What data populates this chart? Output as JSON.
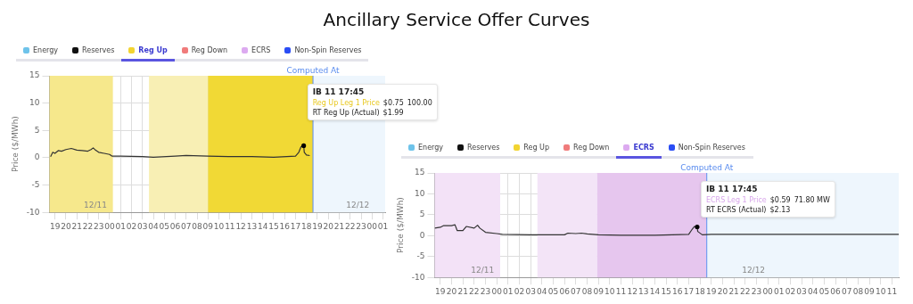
{
  "chart_data": [
    {
      "type": "line",
      "title": "Ancillary Service Offer Curves",
      "ylabel": "Price ($/MWh)",
      "x": [
        18.6,
        18.8,
        19,
        19.3,
        19.6,
        20,
        20.5,
        21,
        21.5,
        22,
        22.3,
        22.5,
        22.7,
        23,
        23.5,
        24,
        24.2,
        25,
        27,
        28,
        30,
        31,
        33,
        35,
        37,
        39,
        41,
        41.3,
        41.5,
        41.75,
        41.8,
        42,
        42.3
      ],
      "series": [
        {
          "color": "#333333",
          "values": [
            0.2,
            1.0,
            0.8,
            1.3,
            1.2,
            1.5,
            1.7,
            1.4,
            1.3,
            1.2,
            1.5,
            1.8,
            1.4,
            1.0,
            0.8,
            0.6,
            0.3,
            0.3,
            0.2,
            0.1,
            0.3,
            0.4,
            0.3,
            0.2,
            0.2,
            0.1,
            0.3,
            1.0,
            2.0,
            2.2,
            1.0,
            0.5,
            0.4
          ]
        },
        {
          "type": "scatter",
          "color": "#000000",
          "x": [
            41.75
          ],
          "values": [
            2.2
          ]
        }
      ],
      "xlim": [
        18.5,
        49.2
      ],
      "ylim": [
        -10,
        15
      ],
      "yticks": [
        -10,
        -5,
        0,
        5,
        10,
        15
      ],
      "xticks": [
        {
          "value": 19,
          "label": "19"
        },
        {
          "value": 20,
          "label": "20"
        },
        {
          "value": 21,
          "label": "21"
        },
        {
          "value": 22,
          "label": "22"
        },
        {
          "value": 23,
          "label": "23"
        },
        {
          "value": 24,
          "label": "00"
        },
        {
          "value": 25,
          "label": "01"
        },
        {
          "value": 26,
          "label": "02"
        },
        {
          "value": 27,
          "label": "03"
        },
        {
          "value": 28,
          "label": "04"
        },
        {
          "value": 29,
          "label": "05"
        },
        {
          "value": 30,
          "label": "06"
        },
        {
          "value": 31,
          "label": "07"
        },
        {
          "value": 32,
          "label": "08"
        },
        {
          "value": 33,
          "label": "09"
        },
        {
          "value": 34,
          "label": "10"
        },
        {
          "value": 35,
          "label": "11"
        },
        {
          "value": 36,
          "label": "12"
        },
        {
          "value": 37,
          "label": "13"
        },
        {
          "value": 38,
          "label": "14"
        },
        {
          "value": 39,
          "label": "15"
        },
        {
          "value": 40,
          "label": "16"
        },
        {
          "value": 41,
          "label": "17"
        },
        {
          "value": 42,
          "label": "18"
        },
        {
          "value": 43,
          "label": "19"
        },
        {
          "value": 44,
          "label": "20"
        },
        {
          "value": 45,
          "label": "21"
        },
        {
          "value": 46,
          "label": "22"
        },
        {
          "value": 47,
          "label": "23"
        },
        {
          "value": 48,
          "label": "00"
        },
        {
          "value": 49,
          "label": "01"
        }
      ],
      "bands": [
        {
          "axis": "x",
          "from": 18.5,
          "to": 24.3,
          "color": "#f6e88c"
        },
        {
          "axis": "x",
          "from": 27.6,
          "to": 33,
          "color": "#f8efb4"
        },
        {
          "axis": "x",
          "from": 33,
          "to": 42.6,
          "color": "#f1d935"
        },
        {
          "axis": "x",
          "from": 42.6,
          "to": 49.2,
          "color": "#eef6fd"
        }
      ],
      "ref_lines": [
        {
          "axis": "x",
          "value": 42.6,
          "label": "Computed At",
          "color": "#5b8def"
        }
      ],
      "grid": true,
      "line_style": "solid",
      "annotations": [
        "Energy",
        "Reserves",
        "Reg Up",
        "Reg Down",
        "ECRS",
        "Non-Spin Reserves",
        "IB 11 17:45",
        "Reg Up Leg 1 Price",
        "$0.75",
        "100.00",
        "RT Reg Up (Actual)",
        "$1.99",
        "12/11",
        "12/12"
      ]
    },
    {
      "type": "line",
      "ylabel": "Price ($/MWh)",
      "x": [
        18.5,
        19,
        19.3,
        20,
        20.3,
        20.5,
        21,
        21.3,
        22,
        22.3,
        22.5,
        23,
        24,
        24.5,
        27,
        30,
        30.3,
        31,
        31.5,
        32,
        33,
        35,
        38,
        41,
        41.3,
        41.5,
        41.75,
        41.8,
        42.2,
        43,
        50,
        59.6
      ],
      "series": [
        {
          "color": "#333333",
          "values": [
            1.8,
            2.0,
            2.4,
            2.4,
            2.6,
            1.2,
            1.2,
            2.2,
            1.8,
            2.5,
            1.8,
            0.8,
            0.5,
            0.3,
            0.2,
            0.2,
            0.6,
            0.5,
            0.6,
            0.4,
            0.2,
            0.1,
            0.1,
            0.3,
            1.5,
            2.2,
            2.1,
            1.0,
            0.2,
            0.3,
            0.3,
            0.3
          ]
        },
        {
          "type": "scatter",
          "color": "#000000",
          "x": [
            41.75
          ],
          "values": [
            2.1
          ]
        }
      ],
      "xlim": [
        18.5,
        59.6
      ],
      "ylim": [
        -10,
        15
      ],
      "yticks": [
        -10,
        -5,
        0,
        5,
        10,
        15
      ],
      "xticks": [
        {
          "value": 19,
          "label": "19"
        },
        {
          "value": 20,
          "label": "20"
        },
        {
          "value": 21,
          "label": "21"
        },
        {
          "value": 22,
          "label": "22"
        },
        {
          "value": 23,
          "label": "23"
        },
        {
          "value": 24,
          "label": "00"
        },
        {
          "value": 25,
          "label": "01"
        },
        {
          "value": 26,
          "label": "02"
        },
        {
          "value": 27,
          "label": "03"
        },
        {
          "value": 28,
          "label": "04"
        },
        {
          "value": 29,
          "label": "05"
        },
        {
          "value": 30,
          "label": "06"
        },
        {
          "value": 31,
          "label": "07"
        },
        {
          "value": 32,
          "label": "08"
        },
        {
          "value": 33,
          "label": "09"
        },
        {
          "value": 34,
          "label": "10"
        },
        {
          "value": 35,
          "label": "11"
        },
        {
          "value": 36,
          "label": "12"
        },
        {
          "value": 37,
          "label": "13"
        },
        {
          "value": 38,
          "label": "14"
        },
        {
          "value": 39,
          "label": "15"
        },
        {
          "value": 40,
          "label": "16"
        },
        {
          "value": 41,
          "label": "17"
        },
        {
          "value": 42,
          "label": "18"
        },
        {
          "value": 43,
          "label": "19"
        },
        {
          "value": 44,
          "label": "20"
        },
        {
          "value": 45,
          "label": "21"
        },
        {
          "value": 46,
          "label": "22"
        },
        {
          "value": 47,
          "label": "23"
        },
        {
          "value": 48,
          "label": "00"
        },
        {
          "value": 49,
          "label": "01"
        },
        {
          "value": 50,
          "label": "02"
        },
        {
          "value": 51,
          "label": "03"
        },
        {
          "value": 52,
          "label": "04"
        },
        {
          "value": 53,
          "label": "05"
        },
        {
          "value": 54,
          "label": "06"
        },
        {
          "value": 55,
          "label": "07"
        },
        {
          "value": 56,
          "label": "08"
        },
        {
          "value": 57,
          "label": "09"
        },
        {
          "value": 58,
          "label": "10"
        },
        {
          "value": 59,
          "label": "11"
        }
      ],
      "bands": [
        {
          "axis": "x",
          "from": 18.5,
          "to": 24.3,
          "color": "#f3e2f7"
        },
        {
          "axis": "x",
          "from": 27.6,
          "to": 32.9,
          "color": "#f3e4f7"
        },
        {
          "axis": "x",
          "from": 32.9,
          "to": 42.6,
          "color": "#e6c6ee"
        },
        {
          "axis": "x",
          "from": 42.6,
          "to": 59.6,
          "color": "#eef6fd"
        }
      ],
      "ref_lines": [
        {
          "axis": "x",
          "value": 42.6,
          "label": "Computed At",
          "color": "#5b8def"
        }
      ],
      "grid": true,
      "line_style": "solid",
      "annotations": [
        "Energy",
        "Reserves",
        "Reg Up",
        "Reg Down",
        "ECRS",
        "Non-Spin Reserves",
        "IB 11 17:45",
        "ECRS Leg 1 Price",
        "$0.59",
        "71.80 MW",
        "RT ECRS (Actual)",
        "$2.13",
        "12/11",
        "12/12"
      ]
    }
  ]
}
